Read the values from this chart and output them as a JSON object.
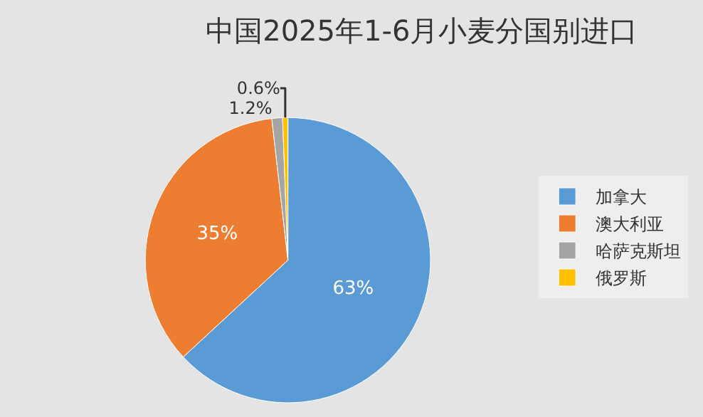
{
  "chart_data": {
    "type": "pie",
    "title": "中国2025年1-6月小麦分国别进口",
    "categories": [
      "加拿大",
      "澳大利亚",
      "哈萨克斯坦",
      "俄罗斯"
    ],
    "values": [
      63,
      35,
      1.2,
      0.6
    ],
    "value_labels": [
      "63%",
      "35%",
      "1.2%",
      "0.6%"
    ],
    "colors": [
      "#5b9bd5",
      "#ed7d31",
      "#a5a5a5",
      "#ffc000"
    ],
    "legend": "right"
  }
}
